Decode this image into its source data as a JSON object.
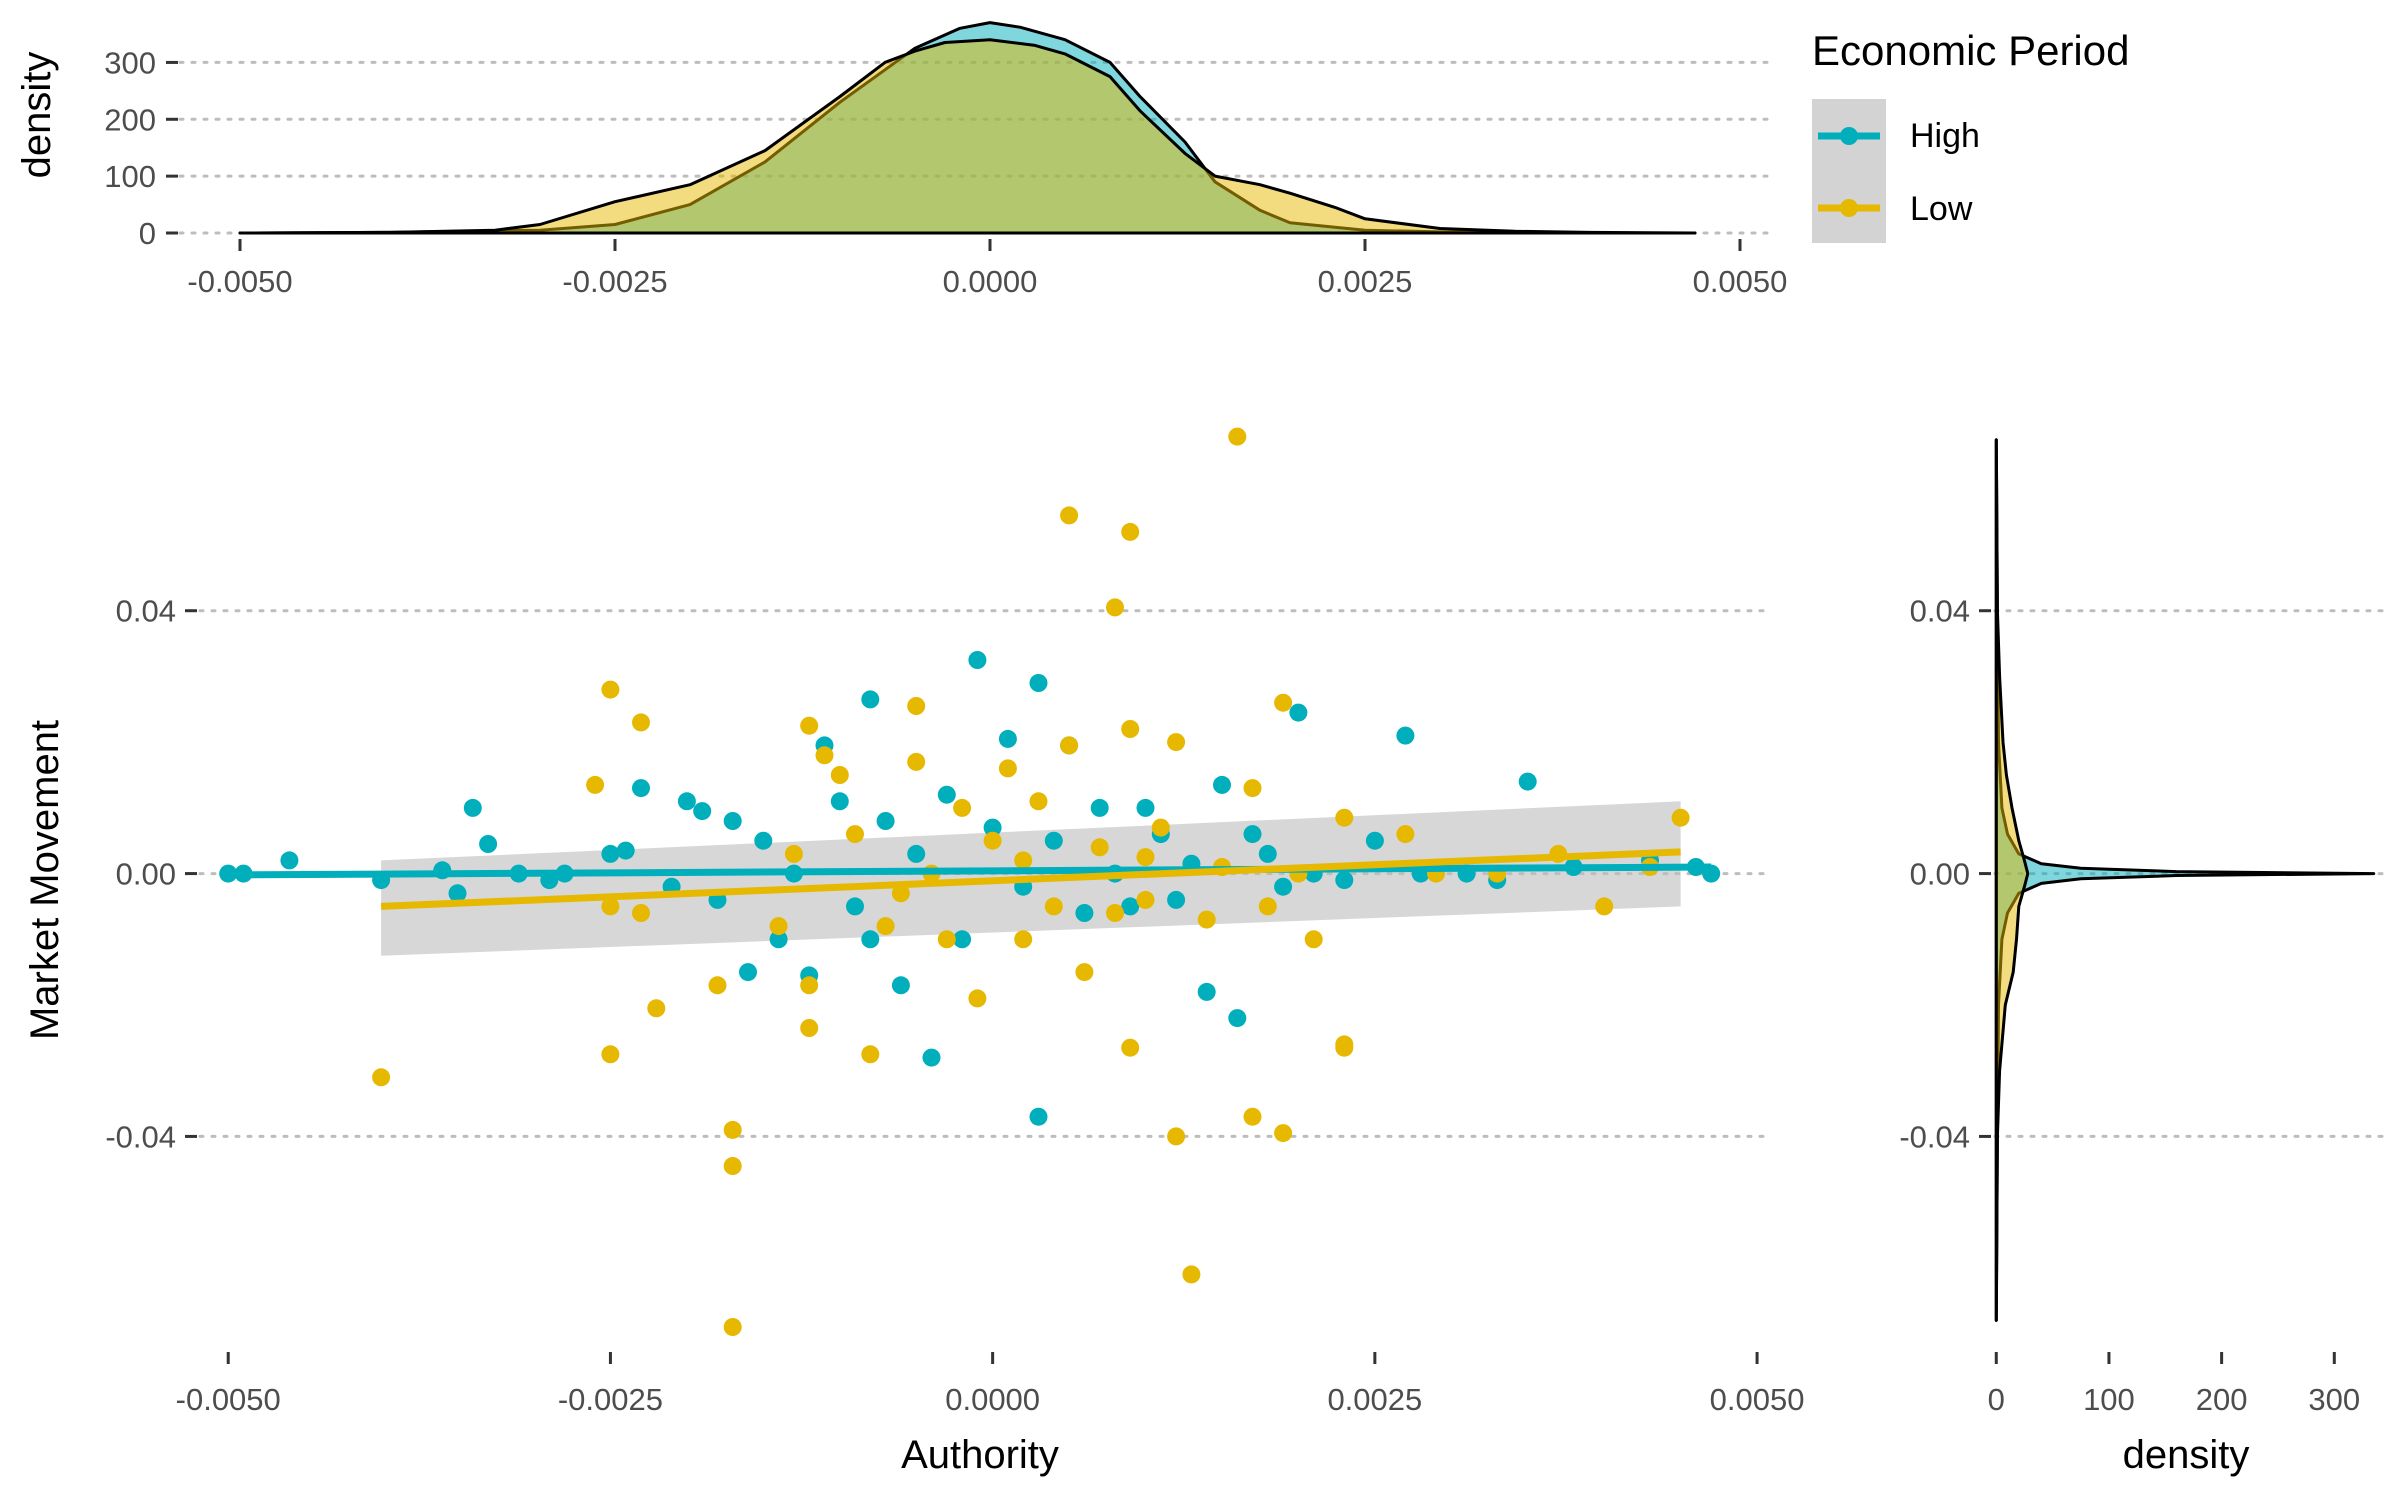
{
  "colors": {
    "High": "#00AFBB",
    "Low": "#E7B800",
    "ribbon": "#bdbdbd",
    "legend_bg": "#d3d3d3"
  },
  "legend": {
    "title": "Economic Period",
    "items": [
      "High",
      "Low"
    ],
    "placement": "top-right"
  },
  "chart_data": [
    {
      "type": "area",
      "panel": "top-marginal",
      "xlabel": "",
      "ylabel": "density",
      "xlim": [
        -0.0052,
        0.0052
      ],
      "ylim": [
        0,
        350
      ],
      "xticks": [
        "-0.0050",
        "-0.0025",
        "0.0000",
        "0.0025",
        "0.0050"
      ],
      "yticks": [
        "0",
        "100",
        "200",
        "300"
      ],
      "series": [
        {
          "name": "High",
          "x": [
            -0.005,
            -0.004,
            -0.003,
            -0.0025,
            -0.002,
            -0.0015,
            -0.001,
            -0.0005,
            -0.0002,
            0.0,
            0.0002,
            0.0005,
            0.0008,
            0.001,
            0.0013,
            0.0015,
            0.0018,
            0.002,
            0.0025,
            0.003,
            0.0035,
            0.004,
            0.0047
          ],
          "y": [
            0,
            1,
            5,
            15,
            50,
            125,
            230,
            325,
            360,
            370,
            362,
            340,
            300,
            240,
            160,
            90,
            40,
            18,
            5,
            2,
            1,
            0,
            0
          ]
        },
        {
          "name": "Low",
          "x": [
            -0.005,
            -0.004,
            -0.0033,
            -0.003,
            -0.0025,
            -0.002,
            -0.0015,
            -0.001,
            -0.0007,
            -0.0005,
            -0.0003,
            0.0,
            0.0003,
            0.0005,
            0.0008,
            0.001,
            0.0013,
            0.0015,
            0.0018,
            0.002,
            0.0023,
            0.0025,
            0.003,
            0.0035,
            0.004,
            0.0047
          ],
          "y": [
            0,
            1,
            5,
            15,
            55,
            85,
            145,
            240,
            300,
            320,
            335,
            340,
            330,
            315,
            275,
            215,
            140,
            100,
            85,
            70,
            45,
            25,
            8,
            3,
            1,
            0
          ]
        }
      ]
    },
    {
      "type": "scatter",
      "panel": "main",
      "xlabel": "Authority",
      "ylabel": "Market Movement",
      "xlim": [
        -0.00525,
        0.00515
      ],
      "ylim": [
        -0.0725,
        0.0675
      ],
      "xticks": [
        "-0.0050",
        "-0.0025",
        "0.0000",
        "0.0025",
        "0.0050"
      ],
      "yticks": [
        "-0.04",
        "0.00",
        "0.04"
      ],
      "grid": "horizontal-dotted",
      "trend_lines": [
        {
          "name": "High",
          "x": [
            -0.005,
            0.0047
          ],
          "y": [
            -0.0002,
            0.001
          ]
        },
        {
          "name": "Low",
          "x": [
            -0.004,
            0.0045
          ],
          "y": [
            -0.005,
            0.0033
          ]
        }
      ],
      "ribbon": {
        "x": [
          -0.004,
          0.0045
        ],
        "y_low": [
          -0.0125,
          -0.005
        ],
        "y_high": [
          0.002,
          0.011
        ]
      },
      "series": [
        {
          "name": "High",
          "points": [
            [
              -0.005,
              0.0
            ],
            [
              -0.0049,
              0.0
            ],
            [
              -0.0046,
              0.002
            ],
            [
              -0.004,
              -0.001
            ],
            [
              -0.0036,
              0.0005
            ],
            [
              -0.0035,
              -0.003
            ],
            [
              -0.0034,
              0.01
            ],
            [
              -0.0033,
              0.0045
            ],
            [
              -0.0031,
              0.0
            ],
            [
              -0.0029,
              -0.001
            ],
            [
              -0.0028,
              0.0
            ],
            [
              -0.0025,
              0.003
            ],
            [
              -0.0024,
              0.0035
            ],
            [
              -0.0023,
              0.013
            ],
            [
              -0.0021,
              -0.002
            ],
            [
              -0.002,
              0.011
            ],
            [
              -0.0019,
              0.0095
            ],
            [
              -0.0018,
              -0.004
            ],
            [
              -0.0017,
              0.008
            ],
            [
              -0.0016,
              -0.015
            ],
            [
              -0.0015,
              0.005
            ],
            [
              -0.0014,
              -0.01
            ],
            [
              -0.0013,
              0.0
            ],
            [
              -0.0012,
              -0.0155
            ],
            [
              -0.0011,
              0.0195
            ],
            [
              -0.001,
              0.011
            ],
            [
              -0.0009,
              -0.005
            ],
            [
              -0.0008,
              0.0265
            ],
            [
              -0.0008,
              -0.01
            ],
            [
              -0.0007,
              0.008
            ],
            [
              -0.0006,
              -0.017
            ],
            [
              -0.0005,
              0.003
            ],
            [
              -0.0004,
              -0.028
            ],
            [
              -0.0003,
              0.012
            ],
            [
              -0.0002,
              -0.01
            ],
            [
              -0.0001,
              0.0325
            ],
            [
              0.0,
              0.007
            ],
            [
              0.0001,
              0.0205
            ],
            [
              0.0002,
              -0.002
            ],
            [
              0.0003,
              0.029
            ],
            [
              0.0003,
              -0.037
            ],
            [
              0.0004,
              0.005
            ],
            [
              0.0005,
              0.0195
            ],
            [
              0.0006,
              -0.006
            ],
            [
              0.0007,
              0.01
            ],
            [
              0.0008,
              0.0
            ],
            [
              0.0009,
              -0.005
            ],
            [
              0.001,
              0.01
            ],
            [
              0.0011,
              0.006
            ],
            [
              0.0012,
              -0.004
            ],
            [
              0.0013,
              0.0015
            ],
            [
              0.0014,
              -0.018
            ],
            [
              0.0015,
              0.0135
            ],
            [
              0.0016,
              -0.022
            ],
            [
              0.0017,
              0.006
            ],
            [
              0.0018,
              0.003
            ],
            [
              0.0019,
              -0.002
            ],
            [
              0.002,
              0.0245
            ],
            [
              0.0021,
              0.0
            ],
            [
              0.0023,
              -0.001
            ],
            [
              0.0025,
              0.005
            ],
            [
              0.0027,
              0.021
            ],
            [
              0.0028,
              0.0
            ],
            [
              0.0031,
              0.0
            ],
            [
              0.0035,
              0.014
            ],
            [
              0.0038,
              0.001
            ],
            [
              0.0043,
              0.002
            ],
            [
              0.0047,
              0.0
            ],
            [
              0.0046,
              0.001
            ],
            [
              0.0033,
              -0.001
            ]
          ]
        },
        {
          "name": "Low",
          "points": [
            [
              -0.004,
              -0.031
            ],
            [
              -0.0026,
              0.0135
            ],
            [
              -0.0025,
              0.028
            ],
            [
              -0.0025,
              -0.005
            ],
            [
              -0.0025,
              -0.0275
            ],
            [
              -0.0023,
              -0.006
            ],
            [
              -0.0023,
              0.023
            ],
            [
              -0.0022,
              -0.0205
            ],
            [
              -0.0018,
              -0.017
            ],
            [
              -0.0017,
              -0.039
            ],
            [
              -0.0017,
              -0.0445
            ],
            [
              -0.0017,
              -0.069
            ],
            [
              -0.0014,
              -0.008
            ],
            [
              -0.0012,
              0.0225
            ],
            [
              -0.0012,
              -0.017
            ],
            [
              -0.0012,
              -0.0235
            ],
            [
              -0.0011,
              0.018
            ],
            [
              -0.001,
              0.015
            ],
            [
              -0.0009,
              0.006
            ],
            [
              -0.0008,
              -0.0275
            ],
            [
              -0.0006,
              -0.003
            ],
            [
              -0.0005,
              0.0255
            ],
            [
              -0.0005,
              0.017
            ],
            [
              -0.0004,
              0.0
            ],
            [
              -0.0003,
              -0.01
            ],
            [
              -0.0002,
              0.01
            ],
            [
              -0.0001,
              -0.019
            ],
            [
              0.0,
              0.005
            ],
            [
              0.0001,
              0.016
            ],
            [
              0.0002,
              -0.01
            ],
            [
              0.0003,
              0.011
            ],
            [
              0.0004,
              -0.005
            ],
            [
              0.0005,
              0.0545
            ],
            [
              0.0005,
              0.0195
            ],
            [
              0.0006,
              -0.015
            ],
            [
              0.0007,
              0.004
            ],
            [
              0.0008,
              0.0405
            ],
            [
              0.0008,
              -0.006
            ],
            [
              0.0009,
              0.052
            ],
            [
              0.0009,
              -0.0265
            ],
            [
              0.0009,
              0.022
            ],
            [
              0.001,
              -0.004
            ],
            [
              0.0011,
              0.007
            ],
            [
              0.0012,
              -0.04
            ],
            [
              0.0012,
              0.02
            ],
            [
              0.0013,
              -0.061
            ],
            [
              0.0014,
              -0.007
            ],
            [
              0.0016,
              0.0665
            ],
            [
              0.0017,
              -0.037
            ],
            [
              0.0017,
              0.013
            ],
            [
              0.0018,
              -0.005
            ],
            [
              0.0019,
              -0.0395
            ],
            [
              0.0019,
              0.026
            ],
            [
              0.002,
              0.0
            ],
            [
              0.0021,
              -0.01
            ],
            [
              0.0023,
              0.0085
            ],
            [
              0.0023,
              -0.026
            ],
            [
              0.0023,
              -0.0265
            ],
            [
              0.0027,
              0.006
            ],
            [
              0.0029,
              0.0
            ],
            [
              0.0033,
              0.0
            ],
            [
              0.0037,
              0.003
            ],
            [
              0.004,
              -0.005
            ],
            [
              0.0045,
              0.0085
            ],
            [
              0.0043,
              0.001
            ],
            [
              -0.0013,
              0.003
            ],
            [
              -0.0007,
              -0.008
            ],
            [
              0.0002,
              0.002
            ],
            [
              0.0015,
              0.001
            ],
            [
              0.001,
              0.0025
            ]
          ]
        }
      ]
    },
    {
      "type": "area",
      "panel": "right-marginal",
      "xlabel": "density",
      "ylabel": "",
      "xlim": [
        -10,
        345
      ],
      "ylim": [
        -0.0725,
        0.0675
      ],
      "xticks": [
        "0",
        "100",
        "200",
        "300"
      ],
      "yticks": [
        "-0.04",
        "0.00",
        "0.04"
      ],
      "series": [
        {
          "name": "High",
          "y": [
            -0.068,
            -0.04,
            -0.02,
            -0.01,
            -0.006,
            -0.003,
            -0.0015,
            -0.0008,
            -0.0003,
            0.0,
            0.0003,
            0.0008,
            0.0015,
            0.003,
            0.006,
            0.01,
            0.02,
            0.04,
            0.066
          ],
          "x": [
            0,
            1,
            2,
            5,
            10,
            20,
            40,
            75,
            160,
            335,
            160,
            75,
            40,
            20,
            10,
            5,
            2,
            1,
            0
          ]
        },
        {
          "name": "Low",
          "y": [
            -0.068,
            -0.04,
            -0.03,
            -0.02,
            -0.015,
            -0.01,
            -0.005,
            -0.002,
            0.0,
            0.002,
            0.005,
            0.01,
            0.015,
            0.02,
            0.03,
            0.04,
            0.066
          ],
          "x": [
            0,
            1,
            3,
            8,
            15,
            18,
            20,
            25,
            28,
            25,
            20,
            14,
            9,
            6,
            3,
            1,
            0
          ]
        }
      ]
    }
  ]
}
